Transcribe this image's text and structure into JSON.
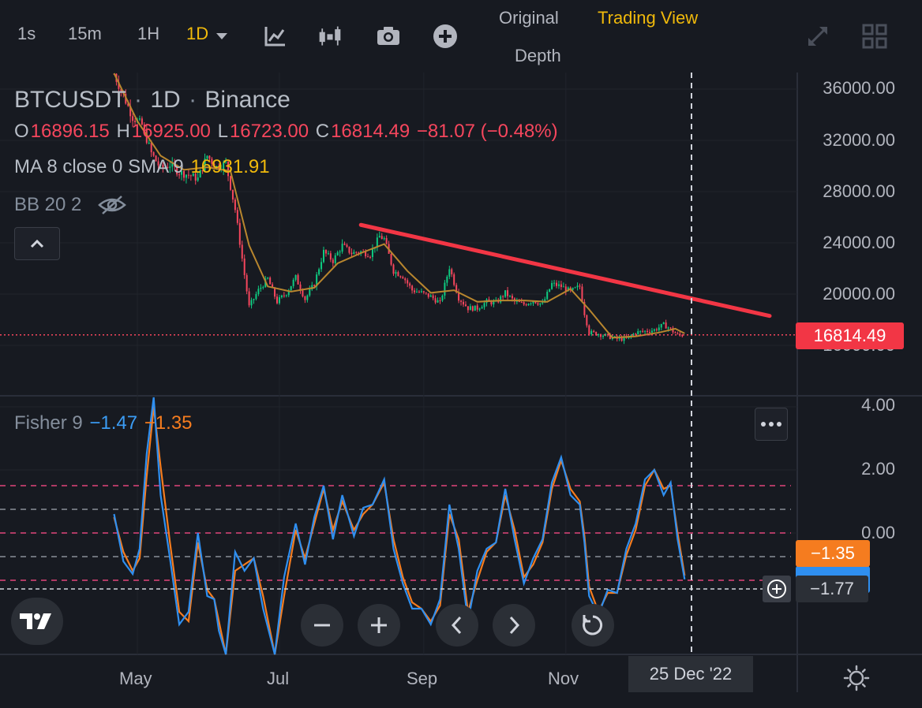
{
  "toolbar": {
    "intervals": [
      "1s",
      "15m",
      "1H",
      "1D"
    ],
    "active_interval": "1D",
    "views": {
      "original": "Original",
      "trading_view": "Trading View",
      "depth": "Depth"
    },
    "icons": [
      "chart-type-icon",
      "indicators-icon",
      "camera-icon",
      "add-icon",
      "expand-icon",
      "layout-grid-icon"
    ]
  },
  "legend": {
    "symbol": "BTCUSDT",
    "sep1": "·",
    "interval": "1D",
    "sep2": "·",
    "exchange": "Binance",
    "o_label": "O",
    "o_value": "16896.15",
    "h_label": "H",
    "h_value": "16925.00",
    "l_label": "L",
    "l_value": "16723.00",
    "c_label": "C",
    "c_value": "16814.49",
    "change": "−81.07 (−0.48%)",
    "ma_label": "MA 8 close 0 SMA 9",
    "ma_value": "16931.91",
    "bb_label": "BB 20 2"
  },
  "fisher_legend": {
    "label": "Fisher 9",
    "value1": "−1.47",
    "value2": "−1.35"
  },
  "price_axis": [
    "36000.00",
    "32000.00",
    "28000.00",
    "24000.00",
    "20000.00",
    "16000.00"
  ],
  "current_price": "16814.49",
  "fisher_axis": [
    "4.00",
    "2.00",
    "0.00"
  ],
  "fisher_tags": {
    "signal": "−1.35",
    "crosshair": "−1.77"
  },
  "time_axis": {
    "months": [
      "May",
      "Jul",
      "Sep",
      "Nov"
    ],
    "crosshair_date": "25 Dec '22"
  },
  "bottom_buttons": [
    "zoom-out",
    "zoom-in",
    "scroll-left",
    "scroll-right",
    "reset"
  ],
  "colors": {
    "up": "#0ecb81",
    "down": "#f6465d",
    "ma": "#b8862e",
    "trendline": "#f23645",
    "fisher": "#2f8ff0",
    "trigger": "#f57c1f",
    "accent": "#f0b90b"
  },
  "chart_data": [
    {
      "type": "candlestick",
      "title": "BTCUSDT · 1D · Binance",
      "y_axis": {
        "ticks": [
          36000,
          32000,
          28000,
          24000,
          20000,
          16000
        ],
        "range": [
          13300,
          37500
        ]
      },
      "x_axis": {
        "ticks": [
          "May",
          "Jul",
          "Sep",
          "Nov"
        ]
      },
      "last_price": 16814.49,
      "series": [
        {
          "name": "price",
          "points": [
            [
              "2022-04-21",
              37200
            ],
            [
              "2022-04-25",
              35500
            ],
            [
              "2022-04-29",
              33800
            ],
            [
              "2022-05-03",
              33200
            ],
            [
              "2022-05-07",
              31000
            ],
            [
              "2022-05-11",
              29800
            ],
            [
              "2022-05-15",
              30100
            ],
            [
              "2022-05-19",
              29500
            ],
            [
              "2022-05-23",
              29300
            ],
            [
              "2022-05-27",
              29000
            ],
            [
              "2022-05-31",
              30800
            ],
            [
              "2022-06-04",
              29900
            ],
            [
              "2022-06-08",
              30200
            ],
            [
              "2022-06-12",
              26600
            ],
            [
              "2022-06-16",
              21500
            ],
            [
              "2022-06-18",
              19000
            ],
            [
              "2022-06-22",
              20300
            ],
            [
              "2022-06-26",
              21200
            ],
            [
              "2022-06-30",
              19400
            ],
            [
              "2022-07-04",
              20100
            ],
            [
              "2022-07-08",
              21300
            ],
            [
              "2022-07-12",
              19600
            ],
            [
              "2022-07-16",
              20800
            ],
            [
              "2022-07-20",
              23300
            ],
            [
              "2022-07-24",
              22600
            ],
            [
              "2022-07-28",
              23800
            ],
            [
              "2022-08-01",
              23200
            ],
            [
              "2022-08-05",
              23300
            ],
            [
              "2022-08-09",
              23100
            ],
            [
              "2022-08-13",
              24500
            ],
            [
              "2022-08-15",
              24300
            ],
            [
              "2022-08-19",
              21800
            ],
            [
              "2022-08-23",
              21400
            ],
            [
              "2022-08-27",
              20300
            ],
            [
              "2022-08-31",
              20100
            ],
            [
              "2022-09-04",
              19800
            ],
            [
              "2022-09-08",
              19300
            ],
            [
              "2022-09-12",
              22100
            ],
            [
              "2022-09-16",
              19700
            ],
            [
              "2022-09-20",
              18900
            ],
            [
              "2022-09-24",
              18900
            ],
            [
              "2022-09-28",
              19400
            ],
            [
              "2022-10-02",
              19300
            ],
            [
              "2022-10-06",
              20100
            ],
            [
              "2022-10-10",
              19400
            ],
            [
              "2022-10-14",
              19200
            ],
            [
              "2022-10-18",
              19500
            ],
            [
              "2022-10-22",
              19200
            ],
            [
              "2022-10-26",
              20800
            ],
            [
              "2022-10-30",
              20600
            ],
            [
              "2022-11-03",
              20200
            ],
            [
              "2022-11-07",
              20600
            ],
            [
              "2022-11-09",
              18500
            ],
            [
              "2022-11-11",
              17000
            ],
            [
              "2022-11-15",
              16900
            ],
            [
              "2022-11-19",
              16700
            ],
            [
              "2022-11-23",
              16500
            ],
            [
              "2022-11-27",
              16500
            ],
            [
              "2022-12-01",
              17000
            ],
            [
              "2022-12-05",
              17100
            ],
            [
              "2022-12-09",
              17200
            ],
            [
              "2022-12-13",
              17600
            ],
            [
              "2022-12-15",
              17400
            ],
            [
              "2022-12-19",
              16800
            ],
            [
              "2022-12-22",
              16814.49
            ]
          ]
        },
        {
          "name": "MA 8 close 0 SMA 9",
          "points": [
            [
              "2022-04-21",
              37300
            ],
            [
              "2022-05-01",
              33500
            ],
            [
              "2022-05-11",
              30800
            ],
            [
              "2022-05-21",
              29700
            ],
            [
              "2022-05-31",
              29900
            ],
            [
              "2022-06-10",
              29600
            ],
            [
              "2022-06-18",
              23800
            ],
            [
              "2022-06-26",
              20600
            ],
            [
              "2022-07-06",
              20200
            ],
            [
              "2022-07-16",
              20500
            ],
            [
              "2022-07-26",
              22400
            ],
            [
              "2022-08-05",
              23200
            ],
            [
              "2022-08-15",
              23900
            ],
            [
              "2022-08-25",
              21800
            ],
            [
              "2022-09-04",
              20100
            ],
            [
              "2022-09-14",
              20300
            ],
            [
              "2022-09-24",
              19400
            ],
            [
              "2022-10-04",
              19500
            ],
            [
              "2022-10-14",
              19500
            ],
            [
              "2022-10-24",
              19400
            ],
            [
              "2022-11-03",
              20400
            ],
            [
              "2022-11-11",
              18800
            ],
            [
              "2022-11-21",
              16600
            ],
            [
              "2022-12-01",
              16700
            ],
            [
              "2022-12-11",
              17000
            ],
            [
              "2022-12-18",
              17300
            ],
            [
              "2022-12-22",
              16931.91
            ]
          ]
        },
        {
          "name": "trendline",
          "points": [
            [
              "2022-08-05",
              25400
            ],
            [
              "2023-01-20",
              18600
            ]
          ]
        }
      ]
    },
    {
      "type": "line",
      "title": "Fisher 9",
      "y_axis": {
        "ticks": [
          4,
          2,
          0
        ],
        "range": [
          -5.1,
          4.8
        ]
      },
      "levels": [
        1.5,
        0.75,
        0,
        -0.75,
        -1.5
      ],
      "series": [
        {
          "name": "Fisher",
          "points": [
            [
              "2022-04-21",
              0.6
            ],
            [
              "2022-04-25",
              -0.9
            ],
            [
              "2022-04-29",
              -1.3
            ],
            [
              "2022-05-02",
              -0.5
            ],
            [
              "2022-05-05",
              2.5
            ],
            [
              "2022-05-08",
              4.3
            ],
            [
              "2022-05-11",
              1.2
            ],
            [
              "2022-05-15",
              -0.8
            ],
            [
              "2022-05-19",
              -2.9
            ],
            [
              "2022-05-23",
              -2.5
            ],
            [
              "2022-05-27",
              0.0
            ],
            [
              "2022-05-31",
              -2.0
            ],
            [
              "2022-06-03",
              -2.1
            ],
            [
              "2022-06-05",
              -3.1
            ],
            [
              "2022-06-08",
              -4.4
            ],
            [
              "2022-06-12",
              -0.6
            ],
            [
              "2022-06-16",
              -1.2
            ],
            [
              "2022-06-20",
              -0.8
            ],
            [
              "2022-06-24",
              -2.4
            ],
            [
              "2022-06-29",
              -4.4
            ],
            [
              "2022-07-03",
              -1.4
            ],
            [
              "2022-07-08",
              0.3
            ],
            [
              "2022-07-12",
              -1.0
            ],
            [
              "2022-07-16",
              0.5
            ],
            [
              "2022-07-20",
              1.5
            ],
            [
              "2022-07-24",
              -0.2
            ],
            [
              "2022-07-28",
              1.2
            ],
            [
              "2022-08-02",
              -0.1
            ],
            [
              "2022-08-06",
              0.8
            ],
            [
              "2022-08-10",
              0.9
            ],
            [
              "2022-08-15",
              1.7
            ],
            [
              "2022-08-19",
              -0.5
            ],
            [
              "2022-08-23",
              -1.6
            ],
            [
              "2022-08-27",
              -2.4
            ],
            [
              "2022-08-31",
              -2.4
            ],
            [
              "2022-09-04",
              -2.9
            ],
            [
              "2022-09-08",
              -2.1
            ],
            [
              "2022-09-12",
              0.9
            ],
            [
              "2022-09-16",
              -0.5
            ],
            [
              "2022-09-20",
              -2.8
            ],
            [
              "2022-09-24",
              -1.2
            ],
            [
              "2022-09-28",
              -0.5
            ],
            [
              "2022-10-02",
              -0.3
            ],
            [
              "2022-10-06",
              1.4
            ],
            [
              "2022-10-10",
              -0.2
            ],
            [
              "2022-10-14",
              -1.6
            ],
            [
              "2022-10-18",
              -0.8
            ],
            [
              "2022-10-22",
              -0.2
            ],
            [
              "2022-10-26",
              1.6
            ],
            [
              "2022-10-30",
              2.4
            ],
            [
              "2022-11-03",
              1.2
            ],
            [
              "2022-11-07",
              0.9
            ],
            [
              "2022-11-09",
              -0.3
            ],
            [
              "2022-11-11",
              -2.0
            ],
            [
              "2022-11-15",
              -2.6
            ],
            [
              "2022-11-19",
              -1.8
            ],
            [
              "2022-11-23",
              -1.9
            ],
            [
              "2022-11-27",
              -0.5
            ],
            [
              "2022-12-01",
              0.3
            ],
            [
              "2022-12-05",
              1.7
            ],
            [
              "2022-12-09",
              2.0
            ],
            [
              "2022-12-13",
              1.2
            ],
            [
              "2022-12-16",
              1.6
            ],
            [
              "2022-12-19",
              -0.2
            ],
            [
              "2022-12-22",
              -1.47
            ]
          ]
        },
        {
          "name": "Trigger",
          "points": [
            [
              "2022-04-21",
              0.5
            ],
            [
              "2022-04-25",
              -0.6
            ],
            [
              "2022-04-29",
              -1.2
            ],
            [
              "2022-05-02",
              -0.8
            ],
            [
              "2022-05-05",
              1.8
            ],
            [
              "2022-05-08",
              4.0
            ],
            [
              "2022-05-11",
              2.1
            ],
            [
              "2022-05-15",
              -0.3
            ],
            [
              "2022-05-19",
              -2.5
            ],
            [
              "2022-05-23",
              -2.8
            ],
            [
              "2022-05-27",
              -0.3
            ],
            [
              "2022-05-31",
              -1.8
            ],
            [
              "2022-06-03",
              -2.1
            ],
            [
              "2022-06-05",
              -2.8
            ],
            [
              "2022-06-08",
              -4.2
            ],
            [
              "2022-06-12",
              -1.2
            ],
            [
              "2022-06-16",
              -1.0
            ],
            [
              "2022-06-20",
              -0.8
            ],
            [
              "2022-06-24",
              -2.0
            ],
            [
              "2022-06-29",
              -4.3
            ],
            [
              "2022-07-03",
              -2.0
            ],
            [
              "2022-07-08",
              0.1
            ],
            [
              "2022-07-12",
              -0.8
            ],
            [
              "2022-07-16",
              0.3
            ],
            [
              "2022-07-20",
              1.4
            ],
            [
              "2022-07-24",
              0.1
            ],
            [
              "2022-07-28",
              1.0
            ],
            [
              "2022-08-02",
              0.1
            ],
            [
              "2022-08-06",
              0.6
            ],
            [
              "2022-08-10",
              0.9
            ],
            [
              "2022-08-15",
              1.6
            ],
            [
              "2022-08-19",
              -0.2
            ],
            [
              "2022-08-23",
              -1.4
            ],
            [
              "2022-08-27",
              -2.2
            ],
            [
              "2022-08-31",
              -2.4
            ],
            [
              "2022-09-04",
              -2.8
            ],
            [
              "2022-09-08",
              -2.3
            ],
            [
              "2022-09-12",
              0.6
            ],
            [
              "2022-09-16",
              -0.2
            ],
            [
              "2022-09-20",
              -2.5
            ],
            [
              "2022-09-24",
              -1.5
            ],
            [
              "2022-09-28",
              -0.6
            ],
            [
              "2022-10-02",
              -0.3
            ],
            [
              "2022-10-06",
              1.2
            ],
            [
              "2022-10-10",
              0.1
            ],
            [
              "2022-10-14",
              -1.4
            ],
            [
              "2022-10-18",
              -1.0
            ],
            [
              "2022-10-22",
              -0.3
            ],
            [
              "2022-10-26",
              1.4
            ],
            [
              "2022-10-30",
              2.3
            ],
            [
              "2022-11-03",
              1.4
            ],
            [
              "2022-11-07",
              1.0
            ],
            [
              "2022-11-09",
              -0.1
            ],
            [
              "2022-11-11",
              -1.7
            ],
            [
              "2022-11-15",
              -2.5
            ],
            [
              "2022-11-19",
              -1.9
            ],
            [
              "2022-11-23",
              -1.9
            ],
            [
              "2022-11-27",
              -0.7
            ],
            [
              "2022-12-01",
              0.1
            ],
            [
              "2022-12-05",
              1.5
            ],
            [
              "2022-12-09",
              2.0
            ],
            [
              "2022-12-13",
              1.4
            ],
            [
              "2022-12-16",
              1.5
            ],
            [
              "2022-12-19",
              0.0
            ],
            [
              "2022-12-22",
              -1.35
            ]
          ]
        }
      ]
    }
  ]
}
